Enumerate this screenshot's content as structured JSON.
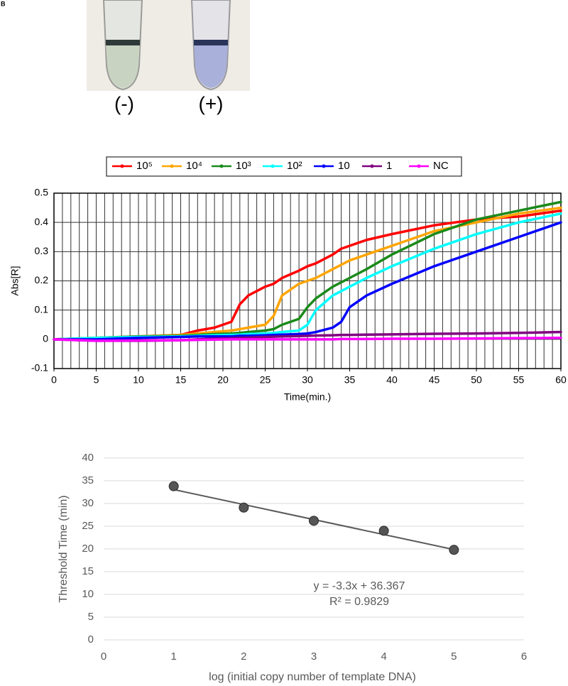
{
  "panel_label": "B",
  "photo": {
    "labels": [
      "(-)",
      "(+)"
    ]
  },
  "chart_data": [
    {
      "type": "line",
      "ylabel": "Abs[R]",
      "xlabel": "Time(min.)",
      "x": [
        0,
        5,
        10,
        15,
        17,
        19,
        21,
        22,
        23,
        25,
        26,
        27,
        29,
        30,
        31,
        33,
        34,
        35,
        37,
        40,
        45,
        50,
        55,
        60
      ],
      "series": [
        {
          "name": "10⁵",
          "color": "#ff0000",
          "values": [
            0,
            0.005,
            0.01,
            0.015,
            0.03,
            0.04,
            0.06,
            0.12,
            0.15,
            0.18,
            0.19,
            0.21,
            0.235,
            0.25,
            0.26,
            0.29,
            0.31,
            0.32,
            0.34,
            0.36,
            0.39,
            0.41,
            0.42,
            0.44
          ]
        },
        {
          "name": "10⁴",
          "color": "#ffa500",
          "values": [
            0,
            0.005,
            0.01,
            0.015,
            0.02,
            0.025,
            0.03,
            0.035,
            0.04,
            0.05,
            0.08,
            0.15,
            0.19,
            0.2,
            0.21,
            0.24,
            0.255,
            0.27,
            0.29,
            0.32,
            0.37,
            0.4,
            0.43,
            0.45
          ]
        },
        {
          "name": "10³",
          "color": "#1a8a1a",
          "values": [
            0,
            0.005,
            0.01,
            0.012,
            0.015,
            0.018,
            0.02,
            0.022,
            0.025,
            0.03,
            0.035,
            0.05,
            0.07,
            0.11,
            0.14,
            0.18,
            0.195,
            0.21,
            0.24,
            0.29,
            0.36,
            0.41,
            0.44,
            0.47
          ]
        },
        {
          "name": "10²",
          "color": "#00ffff",
          "values": [
            0,
            0.005,
            0.008,
            0.01,
            0.012,
            0.014,
            0.015,
            0.016,
            0.018,
            0.02,
            0.022,
            0.025,
            0.03,
            0.05,
            0.1,
            0.15,
            0.165,
            0.18,
            0.21,
            0.25,
            0.31,
            0.36,
            0.4,
            0.43
          ]
        },
        {
          "name": "10",
          "color": "#0000ff",
          "values": [
            0,
            0,
            0.005,
            0.008,
            0.01,
            0.01,
            0.01,
            0.012,
            0.012,
            0.014,
            0.015,
            0.016,
            0.018,
            0.02,
            0.025,
            0.04,
            0.06,
            0.11,
            0.15,
            0.19,
            0.25,
            0.3,
            0.35,
            0.4
          ]
        },
        {
          "name": "1",
          "color": "#800080",
          "values": [
            0,
            -0.005,
            -0.005,
            -0.003,
            0,
            0.002,
            0.004,
            0.005,
            0.006,
            0.008,
            0.009,
            0.01,
            0.011,
            0.012,
            0.013,
            0.014,
            0.015,
            0.015,
            0.016,
            0.017,
            0.019,
            0.02,
            0.022,
            0.025
          ]
        },
        {
          "name": "NC",
          "color": "#ff00ff",
          "values": [
            0,
            -0.005,
            -0.004,
            -0.003,
            -0.002,
            -0.001,
            0,
            0,
            0,
            0,
            0,
            0,
            0,
            0,
            0,
            0,
            0.001,
            0.001,
            0.001,
            0.002,
            0.002,
            0.003,
            0.004,
            0.005
          ]
        }
      ],
      "xlim": [
        0,
        60
      ],
      "xticks": [
        0,
        5,
        10,
        15,
        20,
        25,
        30,
        35,
        40,
        45,
        50,
        55,
        60
      ],
      "xgrid_step": 1,
      "ylim": [
        -0.1,
        0.5
      ],
      "yticks": [
        -0.1,
        0,
        0.1,
        0.2,
        0.3,
        0.4,
        0.5
      ],
      "grid": true,
      "legend": "top"
    },
    {
      "type": "scatter",
      "ylabel": "Threshold Time (min)",
      "xlabel": "log (initial copy number of template DNA)",
      "x": [
        1,
        2,
        3,
        4,
        5
      ],
      "values": [
        33.8,
        29.1,
        26.2,
        24.0,
        19.8
      ],
      "color": "#555555",
      "trendline": {
        "slope": -3.3,
        "intercept": 36.367,
        "r2": 0.9829,
        "label": "y = -3.3x + 36.367",
        "r2_label": "R² = 0.9829"
      },
      "xlim": [
        0,
        6
      ],
      "xticks": [
        0,
        1,
        2,
        3,
        4,
        5,
        6
      ],
      "ylim": [
        0,
        40
      ],
      "yticks": [
        0,
        5,
        10,
        15,
        20,
        25,
        30,
        35,
        40
      ],
      "grid": true
    }
  ]
}
